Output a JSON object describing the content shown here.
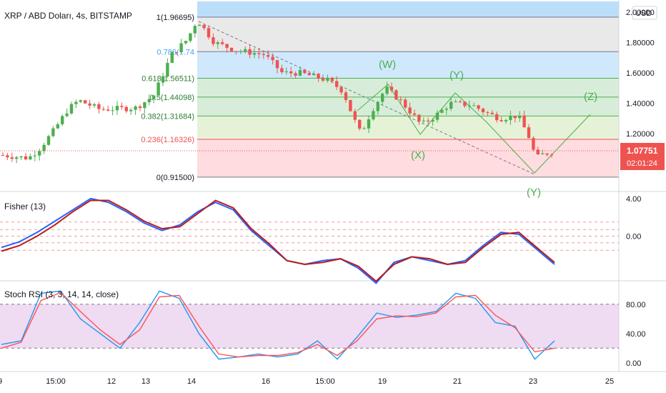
{
  "header": {
    "title": "XRP / ABD Doları, 4s, BITSTAMP",
    "currency": "USD"
  },
  "price_badge": {
    "value": "1.07751",
    "countdown": "02:01:24",
    "color": "#ef5350"
  },
  "colors": {
    "up": "#26a69a",
    "up_bar": "#4caf50",
    "down": "#ef5350",
    "fisher_main": "#2962ff",
    "fisher_signal": "#b71c1c",
    "stoch_k": "#2196f3",
    "stoch_d": "#ff5252",
    "stoch_band": "#e1bee7"
  },
  "chart_data": [
    {
      "type": "candlestick",
      "panel": "price",
      "title": "XRP / ABD Doları, 4s, BITSTAMP",
      "y_ticks": [
        "2.00000",
        "1.80000",
        "1.60000",
        "1.40000",
        "1.20000"
      ],
      "ylim": [
        0.83,
        2.07
      ],
      "x_ticks": [
        "9",
        "15:00",
        "12",
        "13",
        "14",
        "16",
        "15:00",
        "19",
        "21",
        "23",
        "25"
      ],
      "fibonacci": [
        {
          "label": "1(1.96695)",
          "ratio": 1,
          "price": 1.96695,
          "band": "#bbdefb"
        },
        {
          "label": "0.786(1.74",
          "ratio": 0.786,
          "price": 1.74,
          "band": "#e0e0e0"
        },
        {
          "label": "0.618(1.56511)",
          "ratio": 0.618,
          "price": 1.56511,
          "band": "#bbdefb"
        },
        {
          "label": "0.5(1.44098)",
          "ratio": 0.5,
          "price": 1.44098,
          "band": "#c8e6c9"
        },
        {
          "label": "0.382(1.31684)",
          "ratio": 0.382,
          "price": 1.31684,
          "band": "#c8e6c9"
        },
        {
          "label": "0.236(1.16326)",
          "ratio": 0.236,
          "price": 1.16326,
          "band": "#dcedc8"
        },
        {
          "label": "0(0.91500)",
          "ratio": 0,
          "price": 0.915,
          "band": "#ffcdd2"
        }
      ],
      "waves": [
        "(W)",
        "(X)",
        "(Y)",
        "(Y)",
        "(Z)"
      ],
      "last_price": 1.07751
    },
    {
      "type": "line",
      "panel": "fisher",
      "title": "Fisher (13)",
      "y_ticks": [
        "4.00",
        "0.00"
      ],
      "ylim": [
        -4.6,
        4.6
      ],
      "series": [
        {
          "values": [
            -1.2,
            -0.6,
            0.4,
            1.6,
            2.8,
            4.0,
            3.6,
            2.6,
            1.4,
            0.6,
            1.2,
            2.6,
            3.6,
            2.8,
            0.6,
            -1.0,
            -2.6,
            -3.0,
            -2.6,
            -2.4,
            -3.4,
            -5.0,
            -2.8,
            -2.2,
            -2.6,
            -3.0,
            -2.6,
            -1.0,
            0.4,
            0.2,
            -1.4,
            -3.0
          ]
        },
        {
          "values": [
            -1.6,
            -1.0,
            0.0,
            1.2,
            2.6,
            3.8,
            3.8,
            2.8,
            1.6,
            0.8,
            1.0,
            2.4,
            3.8,
            3.0,
            0.8,
            -0.8,
            -2.6,
            -3.0,
            -2.8,
            -2.4,
            -3.2,
            -4.8,
            -3.0,
            -2.2,
            -2.4,
            -3.0,
            -2.8,
            -1.2,
            0.2,
            0.4,
            -1.2,
            -2.8
          ]
        }
      ]
    },
    {
      "type": "line",
      "panel": "stoch_rsi",
      "title": "Stoch RSI (3, 3, 14, 14, close)",
      "y_ticks": [
        "80.00",
        "40.00",
        "0.00"
      ],
      "ylim": [
        -10,
        110
      ],
      "band": [
        20,
        80
      ],
      "series": [
        {
          "values": [
            25,
            30,
            95,
            98,
            60,
            40,
            20,
            55,
            98,
            88,
            40,
            5,
            8,
            12,
            8,
            12,
            30,
            5,
            35,
            68,
            62,
            65,
            70,
            95,
            88,
            55,
            50,
            5,
            30
          ]
        },
        {
          "values": [
            20,
            28,
            85,
            96,
            70,
            45,
            25,
            45,
            90,
            92,
            50,
            12,
            8,
            10,
            10,
            14,
            25,
            10,
            30,
            60,
            64,
            63,
            68,
            90,
            92,
            65,
            48,
            15,
            20
          ]
        }
      ]
    }
  ]
}
